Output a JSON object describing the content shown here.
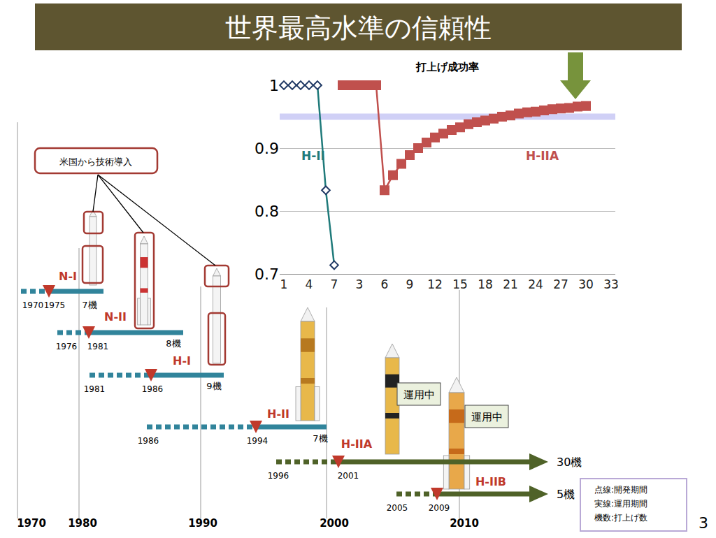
{
  "title": "世界最高水準の信頼性",
  "chart_data": {
    "type": "line",
    "title": "打上げ成功率",
    "categories": [
      "1",
      null,
      null,
      "4",
      null,
      null,
      "7",
      null,
      null,
      "3",
      null,
      null,
      "6",
      null,
      null,
      "9",
      null,
      null,
      "12",
      null,
      null,
      "15",
      null,
      null,
      "18",
      null,
      null,
      "21",
      null,
      null,
      "24",
      null,
      null,
      "27",
      null,
      null,
      "30",
      null,
      null,
      "33"
    ],
    "series": [
      {
        "name": "H-II",
        "color": "#1f7a7a",
        "marker": "diamond",
        "values": [
          1,
          1,
          1,
          1,
          1,
          0.833,
          0.714,
          null,
          null,
          null,
          null,
          null,
          null,
          null,
          null,
          null,
          null,
          null,
          null,
          null,
          null,
          null,
          null,
          null,
          null,
          null,
          null,
          null,
          null,
          null,
          null,
          null,
          null,
          null,
          null,
          null,
          null,
          null,
          null,
          null
        ]
      },
      {
        "name": "H-IIA",
        "color": "#c0504d",
        "marker": "square",
        "values": [
          null,
          null,
          null,
          null,
          null,
          null,
          null,
          1,
          1,
          1,
          1,
          1,
          0.833,
          0.857,
          0.875,
          0.889,
          0.9,
          0.909,
          0.917,
          0.923,
          0.929,
          0.933,
          0.938,
          0.941,
          0.944,
          0.947,
          0.95,
          0.952,
          0.955,
          0.957,
          0.958,
          0.96,
          0.962,
          0.963,
          0.964,
          0.966,
          0.967,
          null,
          null,
          null
        ]
      }
    ],
    "reference_line": 0.95,
    "ylim": [
      0.7,
      1
    ],
    "yticks": [
      0.7,
      0.8,
      0.9,
      1
    ],
    "grid": true
  },
  "timeline": {
    "note": "米国から技術導入",
    "axis_years": [
      1970,
      1980,
      1990,
      2000,
      2010
    ],
    "rockets": [
      {
        "name": "N-I",
        "dev_start": 1970,
        "first_launch": 1975,
        "launches": "7機"
      },
      {
        "name": "N-II",
        "dev_start": 1976,
        "first_launch": 1981,
        "launches": "8機"
      },
      {
        "name": "H-I",
        "dev_start": 1981,
        "first_launch": 1986,
        "launches": "9機"
      },
      {
        "name": "H-II",
        "dev_start": 1986,
        "first_launch": 1994,
        "launches": "7機"
      },
      {
        "name": "H-IIA",
        "dev_start": 1996,
        "first_launch": 2001,
        "launches": "30機",
        "status": "運用中"
      },
      {
        "name": "H-IIB",
        "dev_start": 2005,
        "first_launch": 2009,
        "launches": "5機",
        "status": "運用中"
      }
    ],
    "key": [
      "点線:開発期間",
      "実線:運用期間",
      "機数:打上げ数"
    ]
  },
  "page_number": 3
}
